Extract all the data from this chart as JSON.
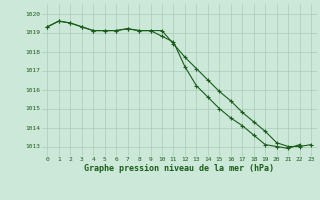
{
  "x": [
    0,
    1,
    2,
    3,
    4,
    5,
    6,
    7,
    8,
    9,
    10,
    11,
    12,
    13,
    14,
    15,
    16,
    17,
    18,
    19,
    20,
    21,
    22,
    23
  ],
  "series1": [
    1019.3,
    1019.6,
    1019.5,
    1019.3,
    1019.1,
    1019.1,
    1019.1,
    1019.2,
    1019.1,
    1019.1,
    1018.8,
    1018.5,
    1017.2,
    1016.2,
    1015.6,
    1015.0,
    1014.5,
    1014.1,
    1013.6,
    1013.1,
    1013.0,
    1012.9,
    1013.1,
    null
  ],
  "series2": [
    1019.3,
    1019.6,
    1019.5,
    1019.3,
    1019.1,
    1019.1,
    1019.1,
    1019.2,
    1019.1,
    1019.1,
    1019.1,
    1018.4,
    1017.7,
    1017.1,
    1016.5,
    1015.9,
    1015.4,
    1014.8,
    1014.3,
    1013.8,
    1013.2,
    1013.0,
    1013.0,
    1013.1
  ],
  "ylim": [
    1012.5,
    1020.5
  ],
  "yticks": [
    1013,
    1014,
    1015,
    1016,
    1017,
    1018,
    1019,
    1020
  ],
  "xlabel": "Graphe pression niveau de la mer (hPa)",
  "line_color": "#1a5c1a",
  "bg_color": "#cce8d8",
  "grid_color": "#aacaba",
  "tick_color": "#1a5c1a",
  "label_color": "#1a5c1a"
}
